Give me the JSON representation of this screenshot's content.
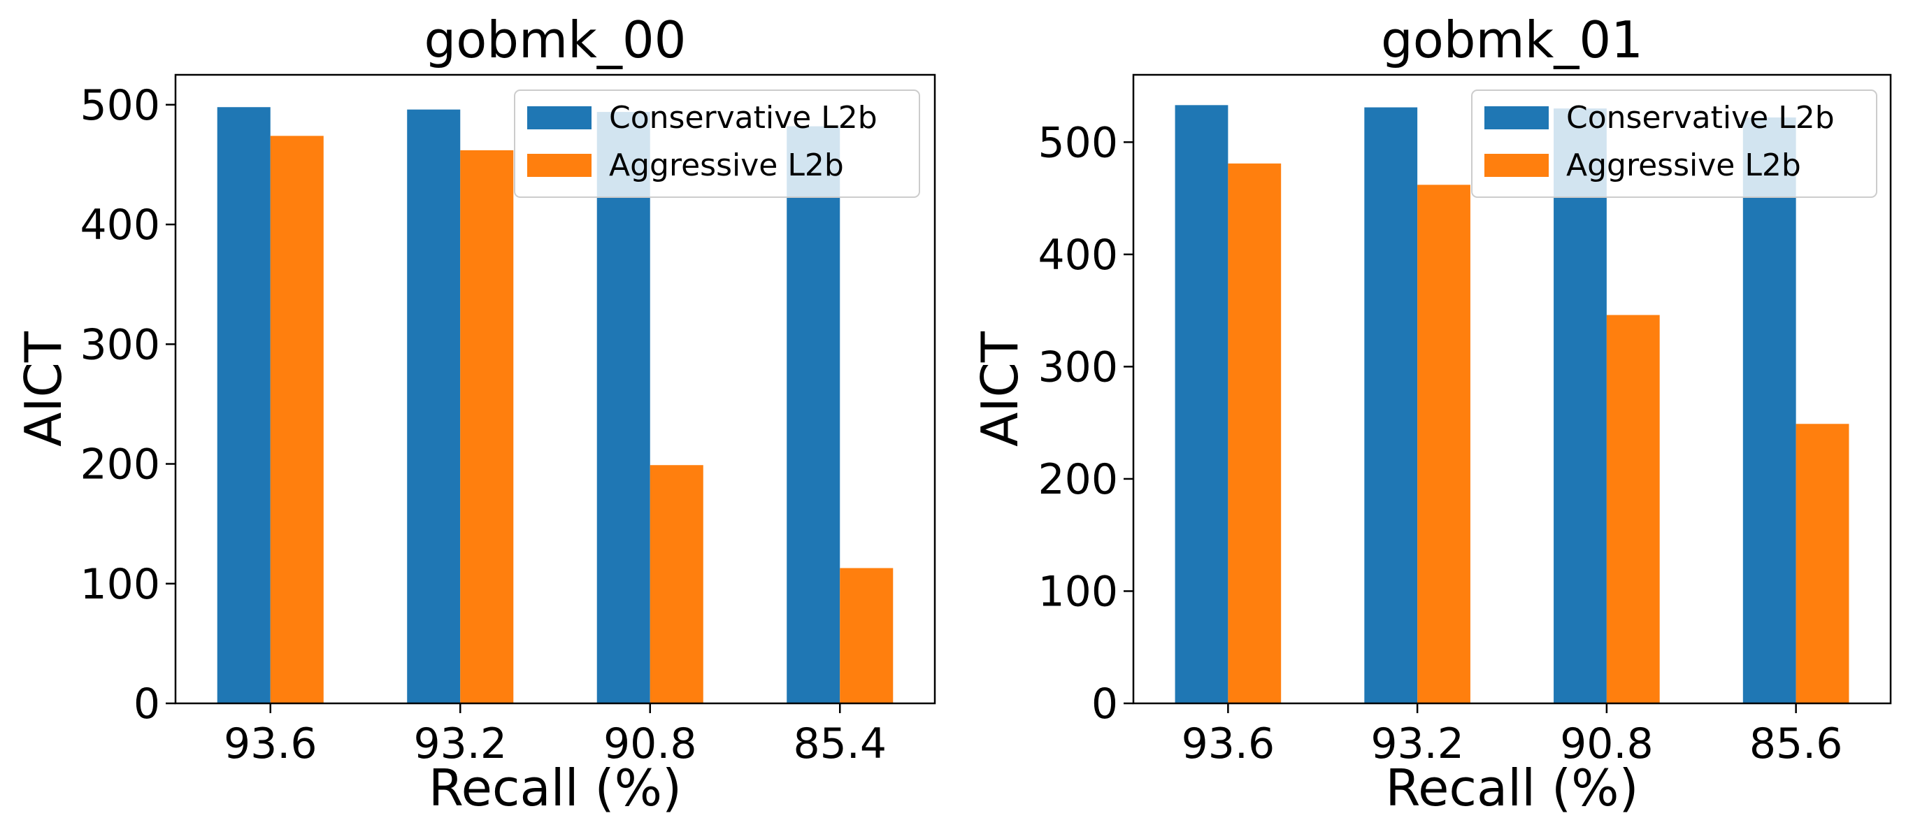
{
  "figure": {
    "background": "#ffffff"
  },
  "chart_data": [
    {
      "type": "bar",
      "title": "gobmk_00",
      "xlabel": "Recall (%)",
      "ylabel": "AICT",
      "categories": [
        "93.6",
        "93.2",
        "90.8",
        "85.4"
      ],
      "ylim": [
        0,
        525
      ],
      "yticks": [
        0,
        100,
        200,
        300,
        400,
        500
      ],
      "legend_position": "top-right",
      "series": [
        {
          "name": "Conservative L2b",
          "color": "#1f77b4",
          "values": [
            498,
            496,
            494,
            482
          ]
        },
        {
          "name": "Aggressive L2b",
          "color": "#ff7f0e",
          "values": [
            474,
            462,
            199,
            113
          ]
        }
      ]
    },
    {
      "type": "bar",
      "title": "gobmk_01",
      "xlabel": "Recall (%)",
      "ylabel": "AICT",
      "categories": [
        "93.6",
        "93.2",
        "90.8",
        "85.6"
      ],
      "ylim": [
        0,
        560
      ],
      "yticks": [
        0,
        100,
        200,
        300,
        400,
        500
      ],
      "legend_position": "top-right",
      "series": [
        {
          "name": "Conservative L2b",
          "color": "#1f77b4",
          "values": [
            533,
            531,
            530,
            522
          ]
        },
        {
          "name": "Aggressive L2b",
          "color": "#ff7f0e",
          "values": [
            481,
            462,
            346,
            249
          ]
        }
      ]
    }
  ]
}
